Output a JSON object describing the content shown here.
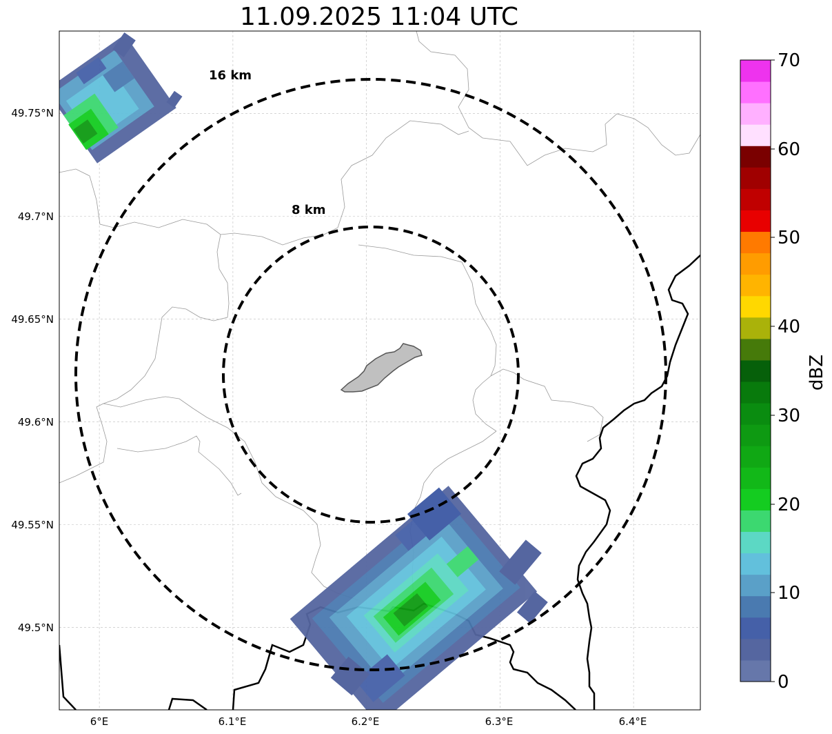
{
  "title": "11.09.2025 11:04 UTC",
  "map": {
    "lat_ticks": [
      "49.75°N",
      "49.7°N",
      "49.65°N",
      "49.6°N",
      "49.55°N",
      "49.5°N"
    ],
    "lon_ticks": [
      "6°E",
      "6.1°E",
      "6.2°E",
      "6.3°E",
      "6.4°E"
    ],
    "extent": {
      "lon_min": 5.97,
      "lon_max": 6.45,
      "lat_min": 49.46,
      "lat_max": 49.79
    },
    "grid": true,
    "center": {
      "lon": 6.203,
      "lat": 49.623
    },
    "range_rings": [
      {
        "label": "8 km",
        "radius_km": 8
      },
      {
        "label": "16 km",
        "radius_km": 16
      }
    ]
  },
  "colorbar": {
    "label": "dBZ",
    "min": 0,
    "max": 70,
    "tick_labels": [
      "0",
      "10",
      "20",
      "30",
      "40",
      "50",
      "60",
      "70"
    ],
    "colors": [
      "#6677aa",
      "#5566a0",
      "#4560a8",
      "#4a7ab0",
      "#5aa0c8",
      "#62c0dc",
      "#5cd8c4",
      "#3cd870",
      "#14cc20",
      "#12b818",
      "#10a814",
      "#0e9a12",
      "#0a8c10",
      "#087a0c",
      "#06600a",
      "#467a0a",
      "#aab20a",
      "#ffd800",
      "#ffb400",
      "#ff9c00",
      "#ff7a00",
      "#e80000",
      "#c00000",
      "#a00000",
      "#7a0000",
      "#ffe0ff",
      "#ffb0ff",
      "#ff70ff",
      "#ee33ee"
    ]
  },
  "colors": {
    "ring": "#000000",
    "border": "#000000",
    "admin": "#999999",
    "city": "#c0c0c0"
  }
}
